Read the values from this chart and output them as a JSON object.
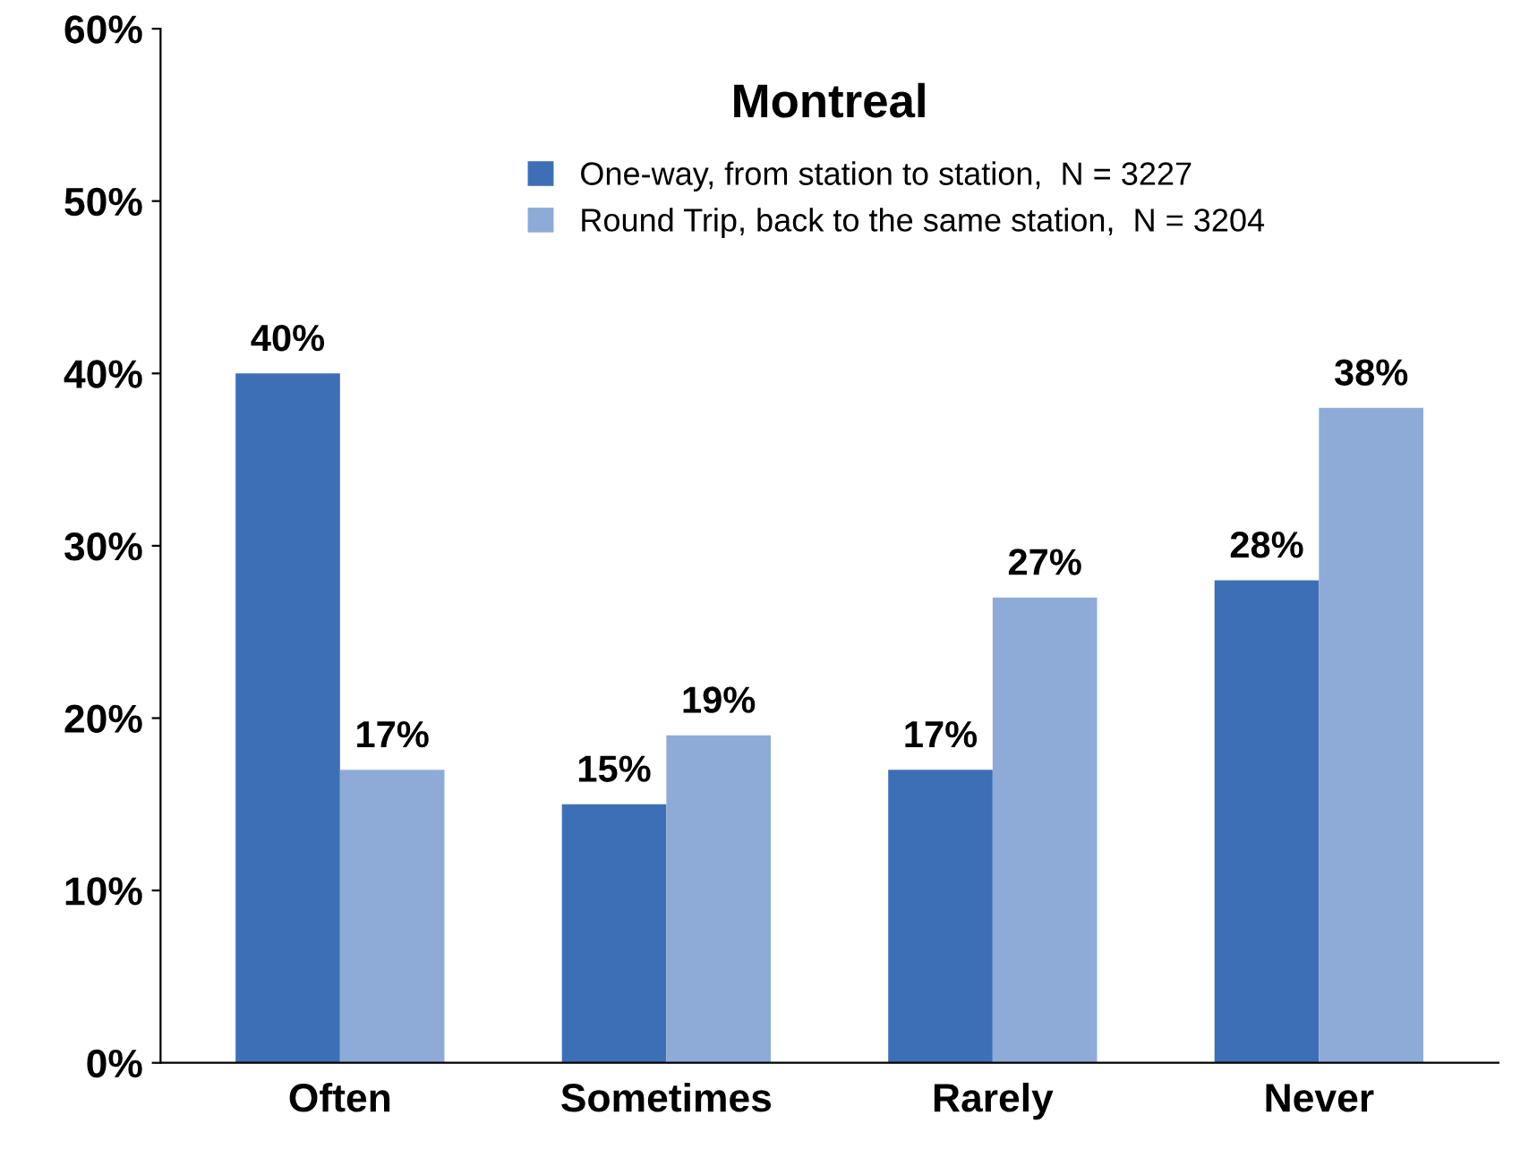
{
  "chart_data": {
    "type": "bar",
    "title": "Montreal",
    "categories": [
      "Often",
      "Sometimes",
      "Rarely",
      "Never"
    ],
    "series": [
      {
        "name": "One-way, from station to station,  N = 3227",
        "color": "#3d6fb6",
        "values": [
          40,
          15,
          17,
          28
        ],
        "value_labels": [
          "40%",
          "15%",
          "17%",
          "28%"
        ]
      },
      {
        "name": "Round Trip, back to the same station,  N = 3204",
        "color": "#8eabd8",
        "values": [
          17,
          19,
          27,
          38
        ],
        "value_labels": [
          "17%",
          "19%",
          "27%",
          "38%"
        ]
      }
    ],
    "ylim": [
      0,
      60
    ],
    "yticks": [
      {
        "value": 0,
        "label": "0%"
      },
      {
        "value": 10,
        "label": "10%"
      },
      {
        "value": 20,
        "label": "20%"
      },
      {
        "value": 30,
        "label": "30%"
      },
      {
        "value": 40,
        "label": "40%"
      },
      {
        "value": 50,
        "label": "50%"
      },
      {
        "value": 60,
        "label": "60%"
      }
    ],
    "grid": false,
    "legend": "top"
  }
}
